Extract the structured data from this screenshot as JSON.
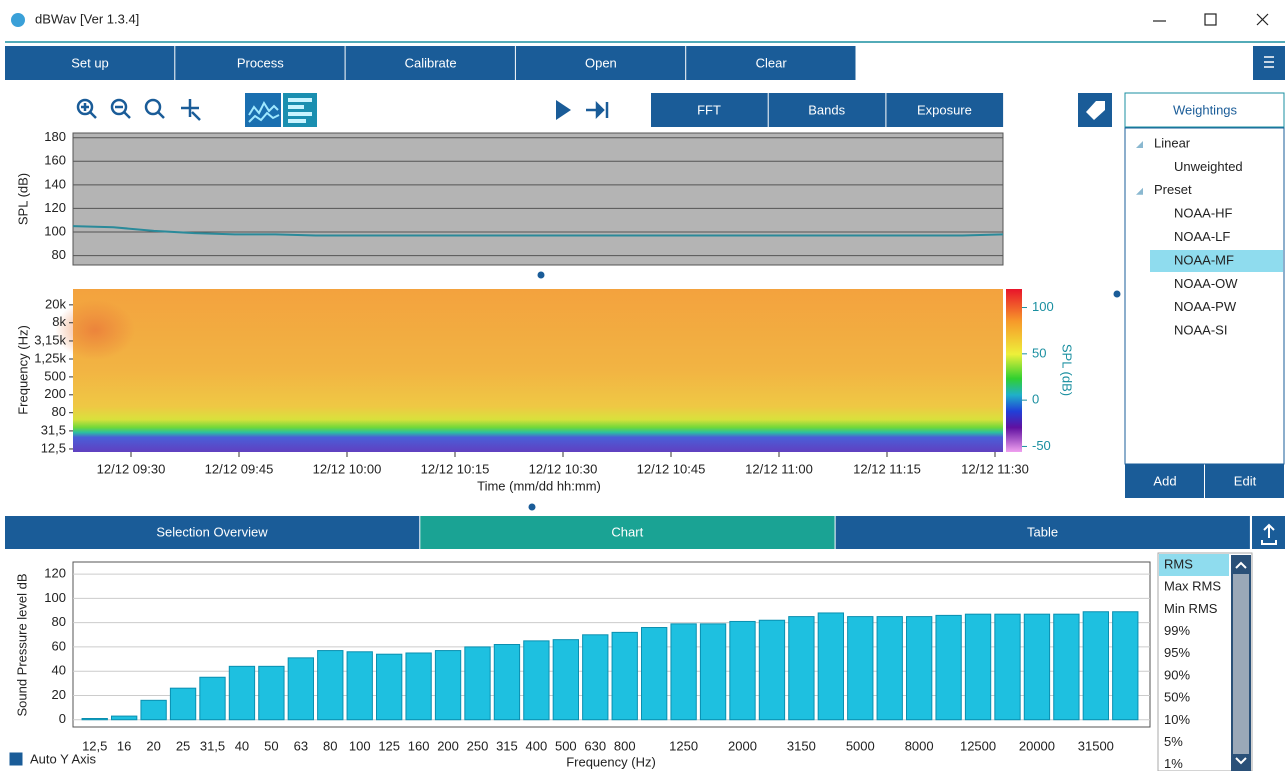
{
  "window": {
    "title": "dBWav [Ver 1.3.4]"
  },
  "toolbar": [
    "Set up",
    "Process",
    "Calibrate",
    "Open",
    "Clear"
  ],
  "analysis_tabs": [
    "FFT",
    "Bands",
    "Exposure"
  ],
  "weightings": {
    "title": "Weightings",
    "groups": [
      {
        "label": "Linear",
        "items": [
          "Unweighted"
        ]
      },
      {
        "label": "Preset",
        "items": [
          "NOAA-HF",
          "NOAA-LF",
          "NOAA-MF",
          "NOAA-OW",
          "NOAA-PW",
          "NOAA-SI"
        ]
      }
    ],
    "selected": "NOAA-MF",
    "buttons": [
      "Add",
      "Edit"
    ]
  },
  "view_tabs": {
    "items": [
      "Selection Overview",
      "Chart",
      "Table"
    ],
    "active": "Chart"
  },
  "statistics": {
    "items": [
      "RMS",
      "Max RMS",
      "Min RMS",
      "99%",
      "95%",
      "90%",
      "50%",
      "10%",
      "5%",
      "1%"
    ],
    "selected": "RMS"
  },
  "auto_y_axis": {
    "label": "Auto Y Axis",
    "checked": true
  },
  "chart_data": [
    {
      "type": "line",
      "y_label": "SPL (dB)",
      "ylim": [
        72,
        184
      ],
      "yticks": [
        80,
        100,
        120,
        140,
        160,
        180
      ],
      "grid": true,
      "series": [
        {
          "color": "#2a8a9a",
          "values": [
            105,
            104,
            101,
            99,
            98,
            98,
            97,
            97,
            97,
            97,
            97,
            97,
            97,
            97,
            97,
            97,
            97,
            97,
            97,
            97,
            97,
            97,
            97,
            98
          ]
        }
      ]
    },
    {
      "type": "heatmap",
      "y_label": "Frequency (Hz)",
      "yscale": "log",
      "ylim": [
        10.7,
        45000
      ],
      "yticks": [
        {
          "value": 20000,
          "label": "20k"
        },
        {
          "value": 8000,
          "label": "8k"
        },
        {
          "value": 3150,
          "label": "3,15k"
        },
        {
          "value": 1250,
          "label": "1,25k"
        },
        500,
        200,
        80,
        {
          "value": 31.5,
          "label": "31,5"
        },
        {
          "value": 12.5,
          "label": "12,5"
        }
      ],
      "xticks": [
        "12/12 09:30",
        "12/12 09:45",
        "12/12 10:00",
        "12/12 10:15",
        "12/12 10:30",
        "12/12 10:45",
        "12/12 11:00",
        "12/12 11:15",
        "12/12 11:30"
      ],
      "x_label": "Time (mm/dd hh:mm)",
      "colorbar": {
        "label": "SPL (dB)",
        "lim": [
          -56,
          120
        ],
        "ticks": [
          -50,
          0,
          50,
          100
        ]
      }
    },
    {
      "type": "bar",
      "y_label": "Sound Pressure level dB",
      "x_label": "Frequency (Hz)",
      "color": "#1ec0e0",
      "ylim": [
        -6,
        130
      ],
      "yticks": [
        0,
        20,
        40,
        60,
        80,
        100,
        120
      ],
      "grid": true,
      "categories": [
        "12,5",
        "16",
        "20",
        "25",
        "31,5",
        "40",
        "50",
        "63",
        "80",
        "100",
        "125",
        "160",
        "200",
        "250",
        "315",
        "400",
        "500",
        "630",
        "800",
        null,
        "1250",
        null,
        "2000",
        null,
        "3150",
        null,
        "5000",
        null,
        "8000",
        null,
        "12500",
        null,
        "20000",
        null,
        "31500",
        null
      ],
      "values": [
        1,
        3,
        16,
        26,
        35,
        44,
        44,
        51,
        57,
        56,
        54,
        55,
        57,
        60,
        62,
        65,
        66,
        70,
        72,
        76,
        79,
        79,
        81,
        82,
        85,
        88,
        85,
        85,
        85,
        86,
        87,
        87,
        87,
        87,
        89,
        89
      ]
    }
  ]
}
